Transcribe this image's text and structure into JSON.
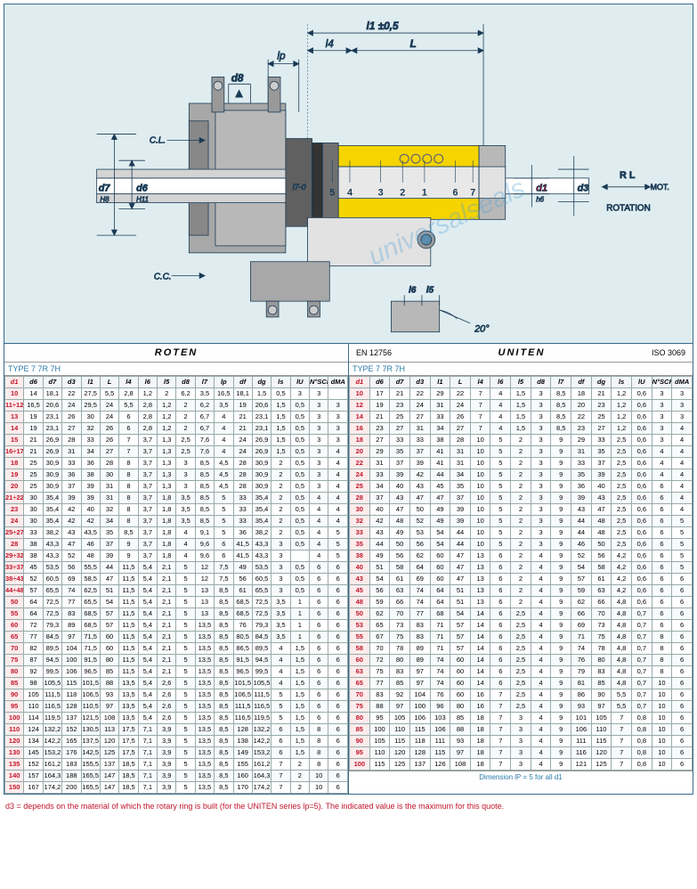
{
  "diagram": {
    "bg_color": "#dfedf0",
    "border_color": "#3a6a8a",
    "body_steel": "#b8b8b8",
    "body_dark": "#888888",
    "highlight": "#f5d400",
    "line": "#1a3a55",
    "red": "#c0152b",
    "labels": {
      "l1": "l1 ±0,5",
      "l4": "l4",
      "L": "L",
      "lp": "lp",
      "d8": "d8",
      "CL": "C.L.",
      "CC": "C.C.",
      "d7": "d7",
      "d6": "d6",
      "H8": "H8",
      "H11": "H11",
      "l7_0": "l7-0",
      "nums": [
        "5",
        "4",
        "3",
        "2",
        "1",
        "6",
        "7"
      ],
      "d1": "d1",
      "h6": "h6",
      "d3": "d3",
      "RL": "R L",
      "MOT": "MOT.",
      "ROT": "ROTATION",
      "l6": "l6",
      "l5": "l5",
      "angle": "20°"
    }
  },
  "watermark_text": "universalseals",
  "roten": {
    "brand": "ROTEN",
    "type_label": "TYPE  7  7R  7H",
    "columns": [
      "d1",
      "d6",
      "d7",
      "d3",
      "l1",
      "L",
      "l4",
      "l6",
      "l5",
      "d8",
      "l7",
      "lp",
      "df",
      "dg",
      "ls",
      "lU",
      "N°SCR",
      "dMA"
    ],
    "rows": [
      [
        "10",
        "14",
        "18,1",
        "22",
        "27,5",
        "5,5",
        "2,8",
        "1,2",
        "2",
        "6,2",
        "3,5",
        "16,5",
        "18,1",
        "1,5",
        "0,5",
        "3",
        "3",
        ""
      ],
      [
        "11÷12",
        "16,5",
        "20,6",
        "24",
        "29,5",
        "24",
        "5,5",
        "2,8",
        "1,2",
        "2",
        "6,2",
        "3,5",
        "19",
        "20,6",
        "1,5",
        "0,5",
        "3",
        "3"
      ],
      [
        "13",
        "19",
        "23,1",
        "26",
        "30",
        "24",
        "6",
        "2,8",
        "1,2",
        "2",
        "6,7",
        "4",
        "21",
        "23,1",
        "1,5",
        "0,5",
        "3",
        "3"
      ],
      [
        "14",
        "19",
        "23,1",
        "27",
        "32",
        "26",
        "6",
        "2,8",
        "1,2",
        "2",
        "6,7",
        "4",
        "21",
        "23,1",
        "1,5",
        "0,5",
        "3",
        "3"
      ],
      [
        "15",
        "21",
        "26,9",
        "28",
        "33",
        "26",
        "7",
        "3,7",
        "1,3",
        "2,5",
        "7,6",
        "4",
        "24",
        "26,9",
        "1,5",
        "0,5",
        "3",
        "3"
      ],
      [
        "16÷17",
        "21",
        "26,9",
        "31",
        "34",
        "27",
        "7",
        "3,7",
        "1,3",
        "2,5",
        "7,6",
        "4",
        "24",
        "26,9",
        "1,5",
        "0,5",
        "3",
        "4"
      ],
      [
        "18",
        "25",
        "30,9",
        "33",
        "36",
        "28",
        "8",
        "3,7",
        "1,3",
        "3",
        "8,5",
        "4,5",
        "28",
        "30,9",
        "2",
        "0,5",
        "3",
        "4"
      ],
      [
        "19",
        "25",
        "30,9",
        "36",
        "38",
        "30",
        "8",
        "3,7",
        "1,3",
        "3",
        "8,5",
        "4,5",
        "28",
        "30,9",
        "2",
        "0,5",
        "3",
        "4"
      ],
      [
        "20",
        "25",
        "30,9",
        "37",
        "39",
        "31",
        "8",
        "3,7",
        "1,3",
        "3",
        "8,5",
        "4,5",
        "28",
        "30,9",
        "2",
        "0,5",
        "3",
        "4"
      ],
      [
        "21÷22",
        "30",
        "35,4",
        "39",
        "39",
        "31",
        "8",
        "3,7",
        "1,8",
        "3,5",
        "8,5",
        "5",
        "33",
        "35,4",
        "2",
        "0,5",
        "4",
        "4"
      ],
      [
        "23",
        "30",
        "35,4",
        "42",
        "40",
        "32",
        "8",
        "3,7",
        "1,8",
        "3,5",
        "8,5",
        "5",
        "33",
        "35,4",
        "2",
        "0,5",
        "4",
        "4"
      ],
      [
        "24",
        "30",
        "35,4",
        "42",
        "42",
        "34",
        "8",
        "3,7",
        "1,8",
        "3,5",
        "8,5",
        "5",
        "33",
        "35,4",
        "2",
        "0,5",
        "4",
        "4"
      ],
      [
        "25÷27",
        "33",
        "38,2",
        "43",
        "43,5",
        "35",
        "8,5",
        "3,7",
        "1,8",
        "4",
        "9,1",
        "5",
        "36",
        "38,2",
        "2",
        "0,5",
        "4",
        "5"
      ],
      [
        "28",
        "38",
        "43,3",
        "47",
        "46",
        "37",
        "9",
        "3,7",
        "1,8",
        "4",
        "9,6",
        "6",
        "41,5",
        "43,3",
        "3",
        "0,5",
        "4",
        "5"
      ],
      [
        "29÷32",
        "38",
        "43,3",
        "52",
        "48",
        "39",
        "9",
        "3,7",
        "1,8",
        "4",
        "9,6",
        "6",
        "41,5",
        "43,3",
        "3",
        "",
        "4",
        "5"
      ],
      [
        "33÷37",
        "45",
        "53,5",
        "56",
        "55,5",
        "44",
        "11,5",
        "5,4",
        "2,1",
        "5",
        "12",
        "7,5",
        "49",
        "53,5",
        "3",
        "0,5",
        "6",
        "6"
      ],
      [
        "38÷43",
        "52",
        "60,5",
        "69",
        "58,5",
        "47",
        "11,5",
        "5,4",
        "2,1",
        "5",
        "12",
        "7,5",
        "56",
        "60,5",
        "3",
        "0,5",
        "6",
        "6"
      ],
      [
        "44÷48",
        "57",
        "65,5",
        "74",
        "62,5",
        "51",
        "11,5",
        "5,4",
        "2,1",
        "5",
        "13",
        "8,5",
        "61",
        "65,5",
        "3",
        "0,5",
        "6",
        "6"
      ],
      [
        "50",
        "64",
        "72,5",
        "77",
        "65,5",
        "54",
        "11,5",
        "5,4",
        "2,1",
        "5",
        "13",
        "8,5",
        "68,5",
        "72,5",
        "3,5",
        "1",
        "6",
        "6"
      ],
      [
        "55",
        "64",
        "72,5",
        "83",
        "68,5",
        "57",
        "11,5",
        "5,4",
        "2,1",
        "5",
        "13",
        "8,5",
        "68,5",
        "72,5",
        "3,5",
        "1",
        "6",
        "6"
      ],
      [
        "60",
        "72",
        "79,3",
        "89",
        "68,5",
        "57",
        "11,5",
        "5,4",
        "2,1",
        "5",
        "13,5",
        "8,5",
        "76",
        "79,3",
        "3,5",
        "1",
        "6",
        "6"
      ],
      [
        "65",
        "77",
        "84,5",
        "97",
        "71,5",
        "60",
        "11,5",
        "5,4",
        "2,1",
        "5",
        "13,5",
        "8,5",
        "80,5",
        "84,5",
        "3,5",
        "1",
        "6",
        "6"
      ],
      [
        "70",
        "82",
        "89,5",
        "104",
        "71,5",
        "60",
        "11,5",
        "5,4",
        "2,1",
        "5",
        "13,5",
        "8,5",
        "86,5",
        "89,5",
        "4",
        "1,5",
        "6",
        "6"
      ],
      [
        "75",
        "87",
        "94,5",
        "100",
        "91,5",
        "80",
        "11,5",
        "5,4",
        "2,1",
        "5",
        "13,5",
        "8,5",
        "91,5",
        "94,5",
        "4",
        "1,5",
        "6",
        "6"
      ],
      [
        "80",
        "92",
        "99,5",
        "106",
        "96,5",
        "85",
        "11,5",
        "5,4",
        "2,1",
        "5",
        "13,5",
        "8,5",
        "96,5",
        "99,5",
        "4",
        "1,5",
        "6",
        "6"
      ],
      [
        "85",
        "98",
        "105,5",
        "115",
        "101,5",
        "88",
        "13,5",
        "5,4",
        "2,6",
        "5",
        "13,5",
        "8,5",
        "101,5",
        "105,5",
        "4",
        "1,5",
        "6",
        "6"
      ],
      [
        "90",
        "105",
        "111,5",
        "118",
        "106,5",
        "93",
        "13,5",
        "5,4",
        "2,6",
        "5",
        "13,5",
        "8,5",
        "106,5",
        "111,5",
        "5",
        "1,5",
        "6",
        "6"
      ],
      [
        "95",
        "110",
        "116,5",
        "128",
        "110,5",
        "97",
        "13,5",
        "5,4",
        "2,6",
        "5",
        "13,5",
        "8,5",
        "111,5",
        "116,5",
        "5",
        "1,5",
        "6",
        "6"
      ],
      [
        "100",
        "114",
        "119,5",
        "137",
        "121,5",
        "108",
        "13,5",
        "5,4",
        "2,6",
        "5",
        "13,5",
        "8,5",
        "116,5",
        "119,5",
        "5",
        "1,5",
        "6",
        "6"
      ],
      [
        "110",
        "124",
        "132,2",
        "152",
        "130,5",
        "113",
        "17,5",
        "7,1",
        "3,9",
        "5",
        "13,5",
        "8,5",
        "128",
        "132,2",
        "6",
        "1,5",
        "8",
        "6"
      ],
      [
        "120",
        "134",
        "142,2",
        "165",
        "137,5",
        "120",
        "17,5",
        "7,1",
        "3,9",
        "5",
        "13,5",
        "8,5",
        "138",
        "142,2",
        "6",
        "1,5",
        "8",
        "6"
      ],
      [
        "130",
        "145",
        "153,2",
        "176",
        "142,5",
        "125",
        "17,5",
        "7,1",
        "3,9",
        "5",
        "13,5",
        "8,5",
        "149",
        "153,2",
        "6",
        "1,5",
        "8",
        "6"
      ],
      [
        "135",
        "152",
        "161,2",
        "183",
        "155,5",
        "137",
        "18,5",
        "7,1",
        "3,9",
        "5",
        "13,5",
        "8,5",
        "155",
        "161,2",
        "7",
        "2",
        "8",
        "6"
      ],
      [
        "140",
        "157",
        "164,3",
        "188",
        "165,5",
        "147",
        "18,5",
        "7,1",
        "3,9",
        "5",
        "13,5",
        "8,5",
        "160",
        "164,3",
        "7",
        "2",
        "10",
        "6"
      ],
      [
        "150",
        "167",
        "174,2",
        "200",
        "165,5",
        "147",
        "18,5",
        "7,1",
        "3,9",
        "5",
        "13,5",
        "8,5",
        "170",
        "174,2",
        "7",
        "2",
        "10",
        "6"
      ]
    ]
  },
  "uniten": {
    "brand": "UNITEN",
    "std_left": "EN 12756",
    "std_right": "ISO 3069",
    "type_label": "TYPE  7  7R  7H",
    "columns": [
      "d1",
      "d6",
      "d7",
      "d3",
      "l1",
      "L",
      "l4",
      "l6",
      "l5",
      "d8",
      "l7",
      "df",
      "dg",
      "ls",
      "lU",
      "N°SCR",
      "dMA"
    ],
    "rows": [
      [
        "10",
        "17",
        "21",
        "22",
        "29",
        "22",
        "7",
        "4",
        "1,5",
        "3",
        "8,5",
        "18",
        "21",
        "1,2",
        "0,6",
        "3",
        "3"
      ],
      [
        "12",
        "19",
        "23",
        "24",
        "31",
        "24",
        "7",
        "4",
        "1,5",
        "3",
        "8,5",
        "20",
        "23",
        "1,2",
        "0,6",
        "3",
        "3"
      ],
      [
        "14",
        "21",
        "25",
        "27",
        "33",
        "26",
        "7",
        "4",
        "1,5",
        "3",
        "8,5",
        "22",
        "25",
        "1,2",
        "0,6",
        "3",
        "3"
      ],
      [
        "16",
        "23",
        "27",
        "31",
        "34",
        "27",
        "7",
        "4",
        "1,5",
        "3",
        "8,5",
        "23",
        "27",
        "1,2",
        "0,6",
        "3",
        "4"
      ],
      [
        "18",
        "27",
        "33",
        "33",
        "38",
        "28",
        "10",
        "5",
        "2",
        "3",
        "9",
        "29",
        "33",
        "2,5",
        "0,6",
        "3",
        "4"
      ],
      [
        "20",
        "29",
        "35",
        "37",
        "41",
        "31",
        "10",
        "5",
        "2",
        "3",
        "9",
        "31",
        "35",
        "2,5",
        "0,6",
        "4",
        "4"
      ],
      [
        "22",
        "31",
        "37",
        "39",
        "41",
        "31",
        "10",
        "5",
        "2",
        "3",
        "9",
        "33",
        "37",
        "2,5",
        "0,6",
        "4",
        "4"
      ],
      [
        "24",
        "33",
        "39",
        "42",
        "44",
        "34",
        "10",
        "5",
        "2",
        "3",
        "9",
        "35",
        "39",
        "2,5",
        "0,6",
        "4",
        "4"
      ],
      [
        "25",
        "34",
        "40",
        "43",
        "45",
        "35",
        "10",
        "5",
        "2",
        "3",
        "9",
        "36",
        "40",
        "2,5",
        "0,6",
        "6",
        "4"
      ],
      [
        "28",
        "37",
        "43",
        "47",
        "47",
        "37",
        "10",
        "5",
        "2",
        "3",
        "9",
        "39",
        "43",
        "2,5",
        "0,6",
        "6",
        "4"
      ],
      [
        "30",
        "40",
        "47",
        "50",
        "49",
        "39",
        "10",
        "5",
        "2",
        "3",
        "9",
        "43",
        "47",
        "2,5",
        "0,6",
        "6",
        "4"
      ],
      [
        "32",
        "42",
        "48",
        "52",
        "49",
        "39",
        "10",
        "5",
        "2",
        "3",
        "9",
        "44",
        "48",
        "2,5",
        "0,6",
        "6",
        "5"
      ],
      [
        "33",
        "43",
        "49",
        "53",
        "54",
        "44",
        "10",
        "5",
        "2",
        "3",
        "9",
        "44",
        "48",
        "2,5",
        "0,6",
        "6",
        "5"
      ],
      [
        "35",
        "44",
        "50",
        "56",
        "54",
        "44",
        "10",
        "5",
        "2",
        "3",
        "9",
        "46",
        "50",
        "2,5",
        "0,6",
        "6",
        "5"
      ],
      [
        "38",
        "49",
        "56",
        "62",
        "60",
        "47",
        "13",
        "6",
        "2",
        "4",
        "9",
        "52",
        "56",
        "4,2",
        "0,6",
        "6",
        "5"
      ],
      [
        "40",
        "51",
        "58",
        "64",
        "60",
        "47",
        "13",
        "6",
        "2",
        "4",
        "9",
        "54",
        "58",
        "4,2",
        "0,6",
        "6",
        "5"
      ],
      [
        "43",
        "54",
        "61",
        "69",
        "60",
        "47",
        "13",
        "6",
        "2",
        "4",
        "9",
        "57",
        "61",
        "4,2",
        "0,6",
        "6",
        "6"
      ],
      [
        "45",
        "56",
        "63",
        "74",
        "64",
        "51",
        "13",
        "6",
        "2",
        "4",
        "9",
        "59",
        "63",
        "4,2",
        "0,6",
        "6",
        "6"
      ],
      [
        "48",
        "59",
        "66",
        "74",
        "64",
        "51",
        "13",
        "6",
        "2",
        "4",
        "9",
        "62",
        "66",
        "4,8",
        "0,6",
        "6",
        "6"
      ],
      [
        "50",
        "62",
        "70",
        "77",
        "68",
        "54",
        "14",
        "6",
        "2,5",
        "4",
        "9",
        "66",
        "70",
        "4,8",
        "0,7",
        "6",
        "6"
      ],
      [
        "53",
        "65",
        "73",
        "83",
        "71",
        "57",
        "14",
        "6",
        "2,5",
        "4",
        "9",
        "69",
        "73",
        "4,8",
        "0,7",
        "6",
        "6"
      ],
      [
        "55",
        "67",
        "75",
        "83",
        "71",
        "57",
        "14",
        "6",
        "2,5",
        "4",
        "9",
        "71",
        "75",
        "4,8",
        "0,7",
        "8",
        "6"
      ],
      [
        "58",
        "70",
        "78",
        "89",
        "71",
        "57",
        "14",
        "6",
        "2,5",
        "4",
        "9",
        "74",
        "78",
        "4,8",
        "0,7",
        "8",
        "6"
      ],
      [
        "60",
        "72",
        "80",
        "89",
        "74",
        "60",
        "14",
        "6",
        "2,5",
        "4",
        "9",
        "76",
        "80",
        "4,8",
        "0,7",
        "8",
        "6"
      ],
      [
        "63",
        "75",
        "83",
        "97",
        "74",
        "60",
        "14",
        "6",
        "2,5",
        "4",
        "9",
        "79",
        "83",
        "4,8",
        "0,7",
        "8",
        "6"
      ],
      [
        "65",
        "77",
        "85",
        "97",
        "74",
        "60",
        "14",
        "6",
        "2,5",
        "4",
        "9",
        "81",
        "85",
        "4,8",
        "0,7",
        "10",
        "6"
      ],
      [
        "70",
        "83",
        "92",
        "104",
        "76",
        "60",
        "16",
        "7",
        "2,5",
        "4",
        "9",
        "86",
        "90",
        "5,5",
        "0,7",
        "10",
        "6"
      ],
      [
        "75",
        "88",
        "97",
        "100",
        "96",
        "80",
        "16",
        "7",
        "2,5",
        "4",
        "9",
        "93",
        "97",
        "5,5",
        "0,7",
        "10",
        "6"
      ],
      [
        "80",
        "95",
        "105",
        "106",
        "103",
        "85",
        "18",
        "7",
        "3",
        "4",
        "9",
        "101",
        "105",
        "7",
        "0,8",
        "10",
        "6"
      ],
      [
        "85",
        "100",
        "110",
        "115",
        "106",
        "88",
        "18",
        "7",
        "3",
        "4",
        "9",
        "106",
        "110",
        "7",
        "0,8",
        "10",
        "6"
      ],
      [
        "90",
        "105",
        "115",
        "118",
        "111",
        "93",
        "18",
        "7",
        "3",
        "4",
        "9",
        "111",
        "115",
        "7",
        "0,8",
        "10",
        "6"
      ],
      [
        "95",
        "110",
        "120",
        "128",
        "115",
        "97",
        "18",
        "7",
        "3",
        "4",
        "9",
        "116",
        "120",
        "7",
        "0,8",
        "10",
        "6"
      ],
      [
        "100",
        "115",
        "125",
        "137",
        "126",
        "108",
        "18",
        "7",
        "3",
        "4",
        "9",
        "121",
        "125",
        "7",
        "0,8",
        "10",
        "6"
      ]
    ],
    "note_lp": "Dimension lP =  5 for all d1"
  },
  "footnote": "d3 = depends on the material of which the rotary ring is built (for the UNITEN series lp=5). The indicated value is the maximum for this quote."
}
